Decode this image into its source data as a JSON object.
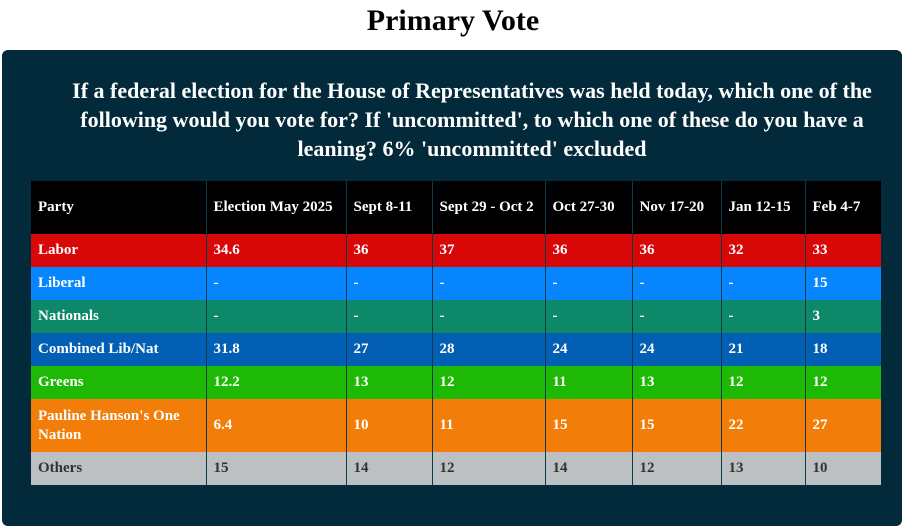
{
  "title": "Primary Vote",
  "question": "If a federal election for the House of Representatives was held today, which one of the following would you vote for? If 'uncommitted', to which one of these do you have a leaning? 6% 'uncommitted' excluded",
  "table": {
    "headers": [
      "Party",
      "Election May 2025",
      "Sept 8-11",
      "Sept 29 - Oct 2",
      "Oct 27-30",
      "Nov 17-20",
      "Jan 12-15",
      "Feb 4-7"
    ],
    "rows": [
      {
        "party": "Labor",
        "color": "#d90808",
        "values": [
          "34.6",
          "36",
          "37",
          "36",
          "36",
          "32",
          "33"
        ]
      },
      {
        "party": "Liberal",
        "color": "#0785fc",
        "values": [
          "-",
          "-",
          "-",
          "-",
          "-",
          "-",
          "15"
        ]
      },
      {
        "party": "Nationals",
        "color": "#0d8869",
        "values": [
          "-",
          "-",
          "-",
          "-",
          "-",
          "-",
          "3"
        ]
      },
      {
        "party": "Combined Lib/Nat",
        "color": "#025fb3",
        "values": [
          "31.8",
          "27",
          "28",
          "24",
          "24",
          "21",
          "18"
        ]
      },
      {
        "party": "Greens",
        "color": "#1db904",
        "values": [
          "12.2",
          "13",
          "12",
          "11",
          "13",
          "12",
          "12"
        ]
      },
      {
        "party": "Pauline Hanson's One Nation",
        "color": "#f27d08",
        "values": [
          "6.4",
          "10",
          "11",
          "15",
          "15",
          "22",
          "27"
        ]
      },
      {
        "party": "Others",
        "color": "#bdc0c2",
        "values": [
          "15",
          "14",
          "12",
          "14",
          "12",
          "13",
          "10"
        ]
      }
    ]
  }
}
